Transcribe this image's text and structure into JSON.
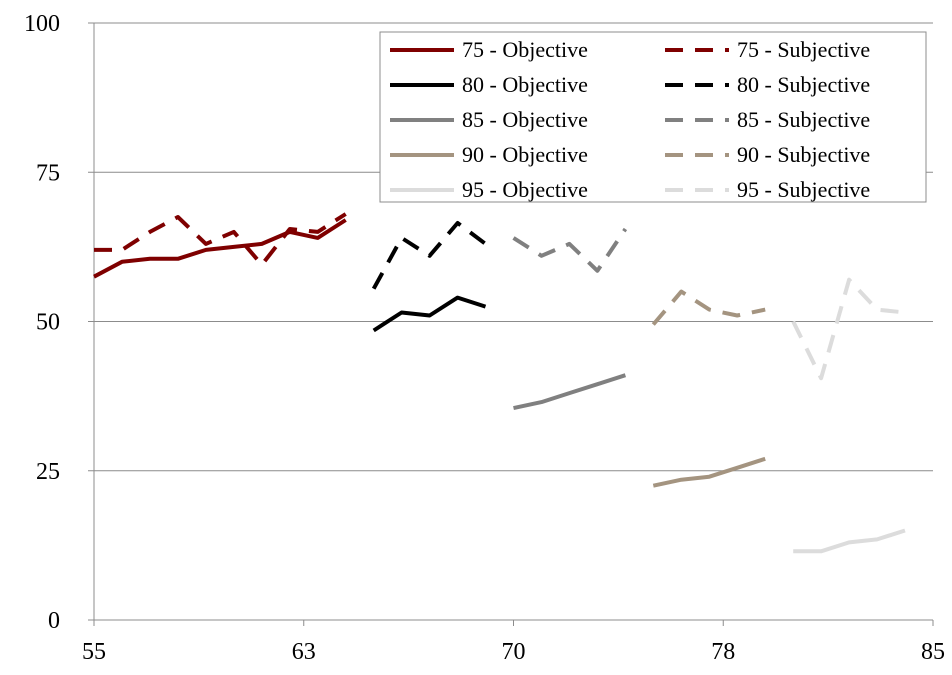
{
  "chart_data": {
    "type": "line",
    "title": "",
    "xlabel": "",
    "ylabel": "",
    "xlim": [
      55,
      85
    ],
    "ylim": [
      0,
      100
    ],
    "x_ticks": [
      "55",
      "63",
      "70",
      "78",
      "85"
    ],
    "y_ticks": [
      "0",
      "25",
      "50",
      "75",
      "100"
    ],
    "grid": "horizontal",
    "legend_position": "top-right",
    "legend_columns": 2,
    "series": [
      {
        "name": "75 - Objective",
        "color": "#7f0000",
        "dash": "solid",
        "x": [
          55,
          56,
          57,
          58,
          59,
          60,
          61,
          62,
          63,
          64
        ],
        "y": [
          57.5,
          60,
          60.5,
          60.5,
          62,
          62.5,
          63,
          65,
          64,
          67
        ]
      },
      {
        "name": "75 - Subjective",
        "color": "#7f0000",
        "dash": "dashed",
        "x": [
          55,
          56,
          57,
          58,
          59,
          60,
          61,
          62,
          63,
          64
        ],
        "y": [
          62,
          62,
          65,
          67.5,
          63,
          65,
          59.5,
          65.5,
          65,
          68
        ]
      },
      {
        "name": "80 - Objective",
        "color": "#000000",
        "dash": "solid",
        "x": [
          65,
          66,
          67,
          68,
          69
        ],
        "y": [
          48.5,
          51.5,
          51,
          54,
          52.5
        ]
      },
      {
        "name": "80 - Subjective",
        "color": "#000000",
        "dash": "dashed",
        "x": [
          65,
          66,
          67,
          68,
          69
        ],
        "y": [
          55.5,
          64,
          61,
          66.5,
          63
        ]
      },
      {
        "name": "85 - Objective",
        "color": "#808080",
        "dash": "solid",
        "x": [
          70,
          71,
          72,
          73,
          74
        ],
        "y": [
          35.5,
          36.5,
          38,
          39.5,
          41
        ]
      },
      {
        "name": "85 - Subjective",
        "color": "#808080",
        "dash": "dashed",
        "x": [
          70,
          71,
          72,
          73,
          74
        ],
        "y": [
          64,
          61,
          63,
          58.5,
          65.5
        ]
      },
      {
        "name": "90 - Objective",
        "color": "#a49480",
        "dash": "solid",
        "x": [
          75,
          76,
          77,
          78,
          79
        ],
        "y": [
          22.5,
          23.5,
          24,
          25.5,
          27
        ]
      },
      {
        "name": "90 - Subjective",
        "color": "#a49480",
        "dash": "dashed",
        "x": [
          75,
          76,
          77,
          78,
          79
        ],
        "y": [
          49.5,
          55,
          52,
          51,
          52
        ]
      },
      {
        "name": "95 - Objective",
        "color": "#dcdcdc",
        "dash": "solid",
        "x": [
          80,
          81,
          82,
          83,
          84
        ],
        "y": [
          11.5,
          11.5,
          13,
          13.5,
          15
        ]
      },
      {
        "name": "95 - Subjective",
        "color": "#dcdcdc",
        "dash": "dashed",
        "x": [
          80,
          81,
          82,
          83,
          84
        ],
        "y": [
          50,
          40.5,
          57,
          52,
          51.5
        ]
      }
    ]
  }
}
